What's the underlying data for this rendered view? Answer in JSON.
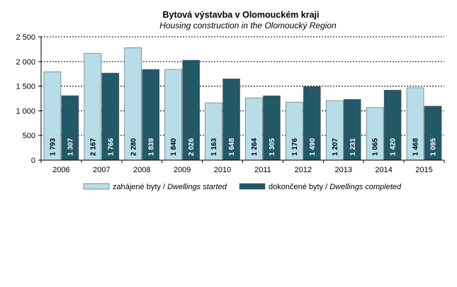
{
  "chart_data": {
    "type": "bar",
    "title": "Bytová výstavba  v Olomouckém kraji",
    "subtitle": "Housing construction in the Olomoucký Region",
    "categories": [
      "2006",
      "2007",
      "2008",
      "2009",
      "2010",
      "2011",
      "2012",
      "2013",
      "2014",
      "2015"
    ],
    "series": [
      {
        "name_cz": "zahájené byty / ",
        "name_en": "Dwellings started",
        "color": "#b7dde8",
        "values": [
          1793,
          2167,
          2280,
          1840,
          1163,
          1264,
          1176,
          1207,
          1065,
          1468
        ],
        "labels": [
          "1 793",
          "2 167",
          "2 280",
          "1 840",
          "1 163",
          "1 264",
          "1 176",
          "1 207",
          "1 065",
          "1 468"
        ],
        "label_color": "#000000"
      },
      {
        "name_cz": "dokončené byty / ",
        "name_en": "Dwellings completed",
        "color": "#215967",
        "values": [
          1307,
          1766,
          1839,
          2026,
          1648,
          1305,
          1490,
          1231,
          1420,
          1095
        ],
        "labels": [
          "1 307",
          "1 766",
          "1 839",
          "2 026",
          "1 648",
          "1 305",
          "1 490",
          "1 231",
          "1 420",
          "1 095"
        ],
        "label_color": "#ffffff"
      }
    ],
    "ylim": [
      0,
      2500
    ],
    "y_ticks": [
      0,
      500,
      1000,
      1500,
      2000,
      2500
    ],
    "y_tick_labels": [
      "0",
      "500",
      "1 000",
      "1 500",
      "2 000",
      "2 500"
    ],
    "grid": true,
    "legend_position": "bottom"
  }
}
